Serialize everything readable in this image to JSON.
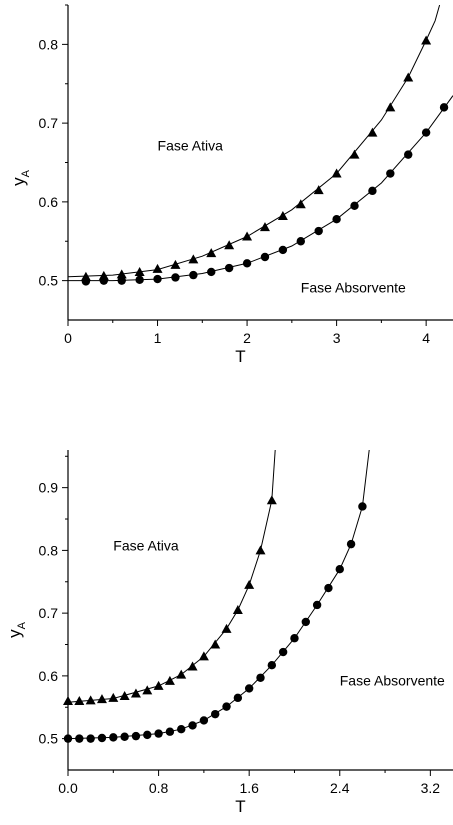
{
  "chart_data": [
    {
      "type": "line",
      "xlabel": "T",
      "ylabel": "y",
      "ylabel_sub": "A",
      "xlim": [
        0,
        4.3
      ],
      "ylim": [
        0.45,
        0.85
      ],
      "xticks": [
        0,
        1,
        2,
        3,
        4
      ],
      "xtick_labels": [
        "0",
        "1",
        "2",
        "3",
        "4"
      ],
      "yticks": [
        0.5,
        0.6,
        0.7,
        0.8
      ],
      "ytick_labels": [
        "0.5",
        "0.6",
        "0.7",
        "0.8"
      ],
      "annotations": [
        {
          "text": "Fase Ativa",
          "x": 1.0,
          "y": 0.665
        },
        {
          "text": "Fase Absorvente",
          "x": 2.6,
          "y": 0.485
        }
      ],
      "series": [
        {
          "marker": "triangle",
          "x": [
            0.2,
            0.4,
            0.6,
            0.8,
            1.0,
            1.2,
            1.4,
            1.6,
            1.8,
            2.0,
            2.2,
            2.4,
            2.6,
            2.8,
            3.0,
            3.2,
            3.4,
            3.6,
            3.8,
            4.0
          ],
          "values": [
            0.505,
            0.506,
            0.508,
            0.511,
            0.515,
            0.52,
            0.527,
            0.535,
            0.545,
            0.556,
            0.568,
            0.582,
            0.597,
            0.615,
            0.636,
            0.66,
            0.688,
            0.72,
            0.758,
            0.805
          ],
          "curve_x": [
            0,
            0.5,
            1.0,
            1.5,
            2.0,
            2.5,
            3.0,
            3.5,
            3.8,
            4.0,
            4.1,
            4.15
          ],
          "curve_y": [
            0.505,
            0.507,
            0.514,
            0.531,
            0.556,
            0.59,
            0.636,
            0.704,
            0.758,
            0.805,
            0.83,
            0.85
          ]
        },
        {
          "marker": "circle",
          "x": [
            0.2,
            0.4,
            0.6,
            0.8,
            1.0,
            1.2,
            1.4,
            1.6,
            1.8,
            2.0,
            2.2,
            2.4,
            2.6,
            2.8,
            3.0,
            3.2,
            3.4,
            3.6,
            3.8,
            4.0,
            4.2
          ],
          "values": [
            0.499,
            0.5,
            0.5,
            0.501,
            0.502,
            0.504,
            0.507,
            0.511,
            0.516,
            0.522,
            0.53,
            0.539,
            0.55,
            0.563,
            0.578,
            0.595,
            0.614,
            0.636,
            0.66,
            0.688,
            0.72
          ],
          "curve_x": [
            0,
            0.5,
            1.0,
            1.5,
            2.0,
            2.5,
            3.0,
            3.5,
            4.0,
            4.3
          ],
          "curve_y": [
            0.5,
            0.5,
            0.502,
            0.509,
            0.522,
            0.544,
            0.578,
            0.624,
            0.688,
            0.735
          ]
        }
      ]
    },
    {
      "type": "line",
      "xlabel": "T",
      "ylabel": "y",
      "ylabel_sub": "A",
      "xlim": [
        0,
        3.4
      ],
      "ylim": [
        0.45,
        0.96
      ],
      "xticks": [
        0,
        0.8,
        1.6,
        2.4,
        3.2
      ],
      "xtick_labels": [
        "0.0",
        "0.8",
        "1.6",
        "2.4",
        "3.2"
      ],
      "yticks": [
        0.5,
        0.6,
        0.7,
        0.8,
        0.9
      ],
      "ytick_labels": [
        "0.5",
        "0.6",
        "0.7",
        "0.8",
        "0.9"
      ],
      "annotations": [
        {
          "text": "Fase Ativa",
          "x": 0.4,
          "y": 0.8
        },
        {
          "text": "Fase Absorvente",
          "x": 2.4,
          "y": 0.585
        }
      ],
      "series": [
        {
          "marker": "triangle",
          "x": [
            0.0,
            0.1,
            0.2,
            0.3,
            0.4,
            0.5,
            0.6,
            0.7,
            0.8,
            0.9,
            1.0,
            1.1,
            1.2,
            1.3,
            1.4,
            1.5,
            1.6,
            1.7,
            1.8
          ],
          "values": [
            0.56,
            0.56,
            0.561,
            0.563,
            0.565,
            0.568,
            0.572,
            0.577,
            0.584,
            0.592,
            0.602,
            0.615,
            0.631,
            0.65,
            0.675,
            0.705,
            0.745,
            0.8,
            0.88
          ],
          "curve_x": [
            0,
            0.4,
            0.8,
            1.0,
            1.2,
            1.4,
            1.5,
            1.6,
            1.7,
            1.8,
            1.83
          ],
          "curve_y": [
            0.558,
            0.564,
            0.584,
            0.602,
            0.631,
            0.675,
            0.705,
            0.745,
            0.8,
            0.88,
            0.96
          ]
        },
        {
          "marker": "circle",
          "x": [
            0.0,
            0.1,
            0.2,
            0.3,
            0.4,
            0.5,
            0.6,
            0.7,
            0.8,
            0.9,
            1.0,
            1.1,
            1.2,
            1.3,
            1.4,
            1.5,
            1.6,
            1.7,
            1.8,
            1.9,
            2.0,
            2.1,
            2.2,
            2.3,
            2.4,
            2.5,
            2.6
          ],
          "values": [
            0.5,
            0.5,
            0.5,
            0.501,
            0.502,
            0.503,
            0.504,
            0.506,
            0.508,
            0.511,
            0.515,
            0.521,
            0.529,
            0.539,
            0.551,
            0.565,
            0.58,
            0.597,
            0.617,
            0.638,
            0.66,
            0.686,
            0.713,
            0.74,
            0.77,
            0.81,
            0.87
          ],
          "curve_x": [
            0,
            0.4,
            0.8,
            1.0,
            1.2,
            1.4,
            1.6,
            1.8,
            2.0,
            2.2,
            2.4,
            2.5,
            2.6,
            2.66
          ],
          "curve_y": [
            0.5,
            0.502,
            0.508,
            0.515,
            0.529,
            0.551,
            0.58,
            0.617,
            0.66,
            0.713,
            0.77,
            0.81,
            0.87,
            0.96
          ]
        }
      ]
    }
  ]
}
